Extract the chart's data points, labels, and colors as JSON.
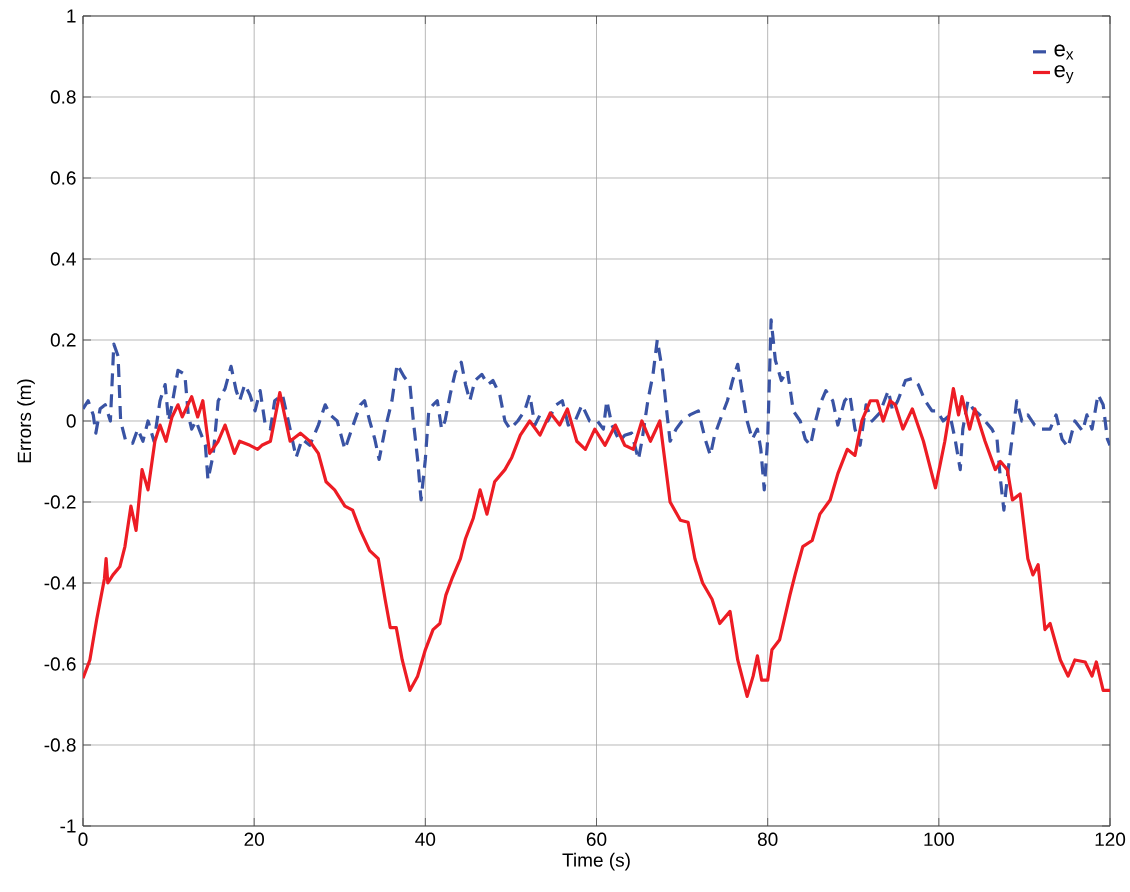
{
  "chart_data": {
    "type": "line",
    "xlabel": "Time (s)",
    "ylabel": "Errors (m)",
    "xlim": [
      0,
      120
    ],
    "ylim": [
      -1,
      1
    ],
    "xticks": [
      0,
      20,
      40,
      60,
      80,
      100,
      120
    ],
    "yticks": [
      -1,
      -0.8,
      -0.6,
      -0.4,
      -0.2,
      0,
      0.2,
      0.4,
      0.6,
      0.8,
      1
    ],
    "grid": true,
    "legend": "top right",
    "marker": "none",
    "series": [
      {
        "name": "e$_{x}$",
        "color": "#3953a4",
        "line_style": "dashed",
        "x": [
          0,
          0.6,
          1.2,
          1.5,
          2.0,
          2.6,
          3.2,
          3.6,
          4.1,
          4.4,
          5.0,
          5.8,
          6.4,
          7.0,
          7.6,
          8.3,
          9.0,
          9.6,
          10.0,
          10.4,
          11.1,
          11.9,
          12.3,
          12.7,
          13.2,
          14.3,
          14.6,
          15.2,
          15.8,
          16.6,
          17.3,
          17.9,
          18.3,
          18.9,
          19.5,
          20.1,
          20.7,
          21.3,
          21.9,
          22.4,
          23.3,
          24.2,
          24.9,
          25.6,
          26.5,
          27.5,
          28.3,
          28.9,
          29.7,
          30.6,
          31.4,
          32.4,
          32.9,
          33.5,
          34.1,
          34.6,
          35.3,
          36.1,
          36.7,
          37.5,
          38.2,
          38.6,
          39.1,
          39.5,
          40.0,
          40.4,
          40.9,
          41.4,
          41.9,
          42.3,
          42.9,
          43.5,
          44.2,
          44.7,
          45.2,
          45.8,
          46.6,
          47.3,
          47.9,
          48.7,
          49.3,
          49.9,
          50.8,
          51.6,
          52.2,
          52.8,
          53.4,
          54.3,
          55.3,
          56.0,
          56.7,
          57.5,
          58.3,
          59.2,
          60.1,
          60.8,
          61.2,
          61.8,
          62.7,
          63.3,
          64.1,
          64.9,
          65.3,
          66.0,
          66.6,
          67.1,
          67.7,
          68.2,
          68.6,
          69.3,
          70.0,
          70.9,
          71.9,
          72.7,
          73.3,
          73.8,
          74.4,
          75.3,
          75.9,
          76.5,
          77.0,
          77.6,
          78.2,
          78.8,
          79.2,
          79.6,
          80.0,
          80.4,
          80.9,
          81.6,
          82.3,
          83.0,
          83.8,
          84.4,
          85.0,
          85.6,
          86.1,
          86.8,
          87.6,
          88.2,
          89.0,
          89.6,
          90.2,
          90.8,
          91.5,
          92.2,
          93.1,
          94.1,
          94.6,
          95.2,
          96.1,
          96.9,
          97.6,
          98.4,
          99.2,
          99.8,
          100.5,
          101.3,
          101.9,
          102.5,
          102.8,
          103.4,
          104.0,
          104.8,
          105.4,
          106.2,
          106.8,
          107.2,
          107.6,
          108.1,
          108.7,
          109.1,
          109.7,
          110.4,
          111.2,
          112.0,
          113.0,
          113.7,
          114.4,
          115.1,
          115.9,
          116.8,
          117.3,
          117.9,
          118.6,
          119.2,
          119.7,
          120
        ],
        "values": [
          0.03,
          0.05,
          0.015,
          -0.03,
          0.03,
          0.04,
          0.0,
          0.19,
          0.16,
          0.0,
          -0.05,
          -0.055,
          -0.02,
          -0.05,
          0.0,
          -0.05,
          0.05,
          0.09,
          0.0,
          0.04,
          0.125,
          0.115,
          0.015,
          -0.02,
          0.0,
          -0.06,
          -0.145,
          -0.085,
          0.05,
          0.08,
          0.135,
          0.075,
          0.05,
          0.09,
          0.065,
          0.025,
          0.075,
          -0.01,
          -0.02,
          0.05,
          0.065,
          -0.02,
          -0.09,
          -0.045,
          -0.06,
          -0.01,
          0.04,
          0.015,
          0.0,
          -0.07,
          -0.02,
          0.04,
          0.05,
          0.0,
          -0.045,
          -0.095,
          -0.02,
          0.05,
          0.14,
          0.11,
          0.09,
          0.0,
          -0.095,
          -0.195,
          -0.095,
          0.025,
          0.04,
          0.05,
          -0.02,
          0.0,
          0.065,
          0.12,
          0.145,
          0.09,
          0.05,
          0.1,
          0.115,
          0.09,
          0.1,
          0.065,
          0.0,
          -0.02,
          0.0,
          0.025,
          0.065,
          -0.01,
          0.015,
          0.0,
          0.04,
          0.05,
          -0.01,
          0.0,
          0.04,
          0.0,
          0.0,
          -0.02,
          0.05,
          -0.01,
          -0.05,
          -0.035,
          -0.03,
          -0.095,
          -0.05,
          0.05,
          0.115,
          0.2,
          0.125,
          0.025,
          -0.05,
          -0.02,
          0.0,
          0.015,
          0.025,
          -0.045,
          -0.085,
          -0.035,
          0.0,
          0.05,
          0.1,
          0.14,
          0.075,
          0.0,
          -0.045,
          -0.02,
          -0.07,
          -0.17,
          -0.045,
          0.25,
          0.15,
          0.1,
          0.125,
          0.025,
          0.0,
          -0.045,
          -0.06,
          0.0,
          0.04,
          0.075,
          0.05,
          -0.01,
          0.05,
          0.065,
          -0.02,
          -0.06,
          0.04,
          0.0,
          0.02,
          0.075,
          0.025,
          0.05,
          0.1,
          0.105,
          0.09,
          0.05,
          0.025,
          0.025,
          0.0,
          0.015,
          -0.045,
          -0.12,
          -0.02,
          0.05,
          0.03,
          0.015,
          0.0,
          -0.02,
          -0.045,
          -0.145,
          -0.22,
          -0.12,
          -0.02,
          0.05,
          0.0,
          0.015,
          -0.01,
          -0.02,
          -0.02,
          0.015,
          -0.045,
          -0.065,
          0.0,
          -0.025,
          0.015,
          -0.02,
          0.065,
          0.04,
          -0.045,
          -0.06
        ]
      },
      {
        "name": "e$_{y}$",
        "color": "#ed1c24",
        "line_style": "solid",
        "x": [
          0,
          0.8,
          1.6,
          2.5,
          2.7,
          2.9,
          3.5,
          4.3,
          4.9,
          5.6,
          6.2,
          6.9,
          7.6,
          8.4,
          9.0,
          9.7,
          10.4,
          11.1,
          11.6,
          12.7,
          13.4,
          14.0,
          14.8,
          15.8,
          16.6,
          17.7,
          18.3,
          19.5,
          20.4,
          20.9,
          21.9,
          23.0,
          24.2,
          25.4,
          26.5,
          27.5,
          28.4,
          29.4,
          30.6,
          31.5,
          32.4,
          33.5,
          34.5,
          35.3,
          35.9,
          36.6,
          37.3,
          38.2,
          39.1,
          40.0,
          40.9,
          41.7,
          42.4,
          43.1,
          44.1,
          44.7,
          45.6,
          46.4,
          47.2,
          48.1,
          49.3,
          50.1,
          51.1,
          52.2,
          53.4,
          54.6,
          55.7,
          56.6,
          57.7,
          58.7,
          59.8,
          61.0,
          62.2,
          63.3,
          64.3,
          65.3,
          66.3,
          67.4,
          68.6,
          69.8,
          70.7,
          71.5,
          72.4,
          73.5,
          74.4,
          75.6,
          76.5,
          77.6,
          78.3,
          78.8,
          79.3,
          80.0,
          80.5,
          81.4,
          82.6,
          83.2,
          84.1,
          85.2,
          86.1,
          87.3,
          88.2,
          89.3,
          90.2,
          91.0,
          92.0,
          92.8,
          93.5,
          94.3,
          94.9,
          95.8,
          96.9,
          98.2,
          99.6,
          100.7,
          101.7,
          102.3,
          102.7,
          103.6,
          104.2,
          105.4,
          106.6,
          107.2,
          108.0,
          108.6,
          109.5,
          110.4,
          111.0,
          111.6,
          112.4,
          113.0,
          114.2,
          115.1,
          115.9,
          117.1,
          117.9,
          118.4,
          119.2,
          120
        ],
        "values": [
          -0.635,
          -0.59,
          -0.49,
          -0.39,
          -0.34,
          -0.4,
          -0.38,
          -0.36,
          -0.31,
          -0.21,
          -0.27,
          -0.12,
          -0.17,
          -0.05,
          -0.01,
          -0.05,
          0.01,
          0.04,
          0.01,
          0.06,
          0.01,
          0.05,
          -0.08,
          -0.05,
          -0.01,
          -0.08,
          -0.05,
          -0.06,
          -0.07,
          -0.06,
          -0.05,
          0.07,
          -0.05,
          -0.03,
          -0.05,
          -0.08,
          -0.15,
          -0.17,
          -0.21,
          -0.22,
          -0.27,
          -0.32,
          -0.34,
          -0.44,
          -0.51,
          -0.51,
          -0.59,
          -0.665,
          -0.63,
          -0.565,
          -0.515,
          -0.5,
          -0.43,
          -0.39,
          -0.34,
          -0.29,
          -0.24,
          -0.17,
          -0.23,
          -0.15,
          -0.12,
          -0.09,
          -0.035,
          0.0,
          -0.035,
          0.02,
          -0.01,
          0.03,
          -0.05,
          -0.07,
          -0.02,
          -0.06,
          -0.01,
          -0.06,
          -0.07,
          0.0,
          -0.05,
          0.0,
          -0.2,
          -0.245,
          -0.25,
          -0.34,
          -0.4,
          -0.44,
          -0.5,
          -0.47,
          -0.59,
          -0.68,
          -0.63,
          -0.58,
          -0.64,
          -0.64,
          -0.565,
          -0.54,
          -0.43,
          -0.38,
          -0.31,
          -0.295,
          -0.23,
          -0.195,
          -0.13,
          -0.07,
          -0.085,
          0.0,
          0.05,
          0.05,
          0.0,
          0.05,
          0.04,
          -0.02,
          0.03,
          -0.05,
          -0.165,
          -0.05,
          0.08,
          0.015,
          0.06,
          -0.02,
          0.03,
          -0.05,
          -0.12,
          -0.1,
          -0.12,
          -0.195,
          -0.18,
          -0.34,
          -0.38,
          -0.355,
          -0.515,
          -0.5,
          -0.59,
          -0.63,
          -0.59,
          -0.595,
          -0.63,
          -0.595,
          -0.665,
          -0.665
        ]
      }
    ]
  }
}
